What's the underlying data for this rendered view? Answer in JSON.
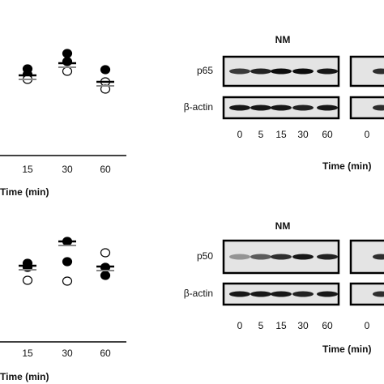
{
  "panels": [
    {
      "left": {
        "x_labels": [
          "15",
          "30",
          "60"
        ],
        "x_title": "Time (min)"
      },
      "right": {
        "title": "NM",
        "target": "p65",
        "control": "β-actin",
        "lanes": [
          "0",
          "5",
          "15",
          "30",
          "60"
        ],
        "next_lane": "0",
        "x_title": "Time (min)"
      }
    },
    {
      "left": {
        "x_labels": [
          "15",
          "30",
          "60"
        ],
        "x_title": "Time (min)"
      },
      "right": {
        "title": "NM",
        "target": "p50",
        "control": "β-actin",
        "lanes": [
          "0",
          "5",
          "15",
          "30",
          "60"
        ],
        "next_lane": "0",
        "x_title": "Time (min)"
      }
    }
  ]
}
